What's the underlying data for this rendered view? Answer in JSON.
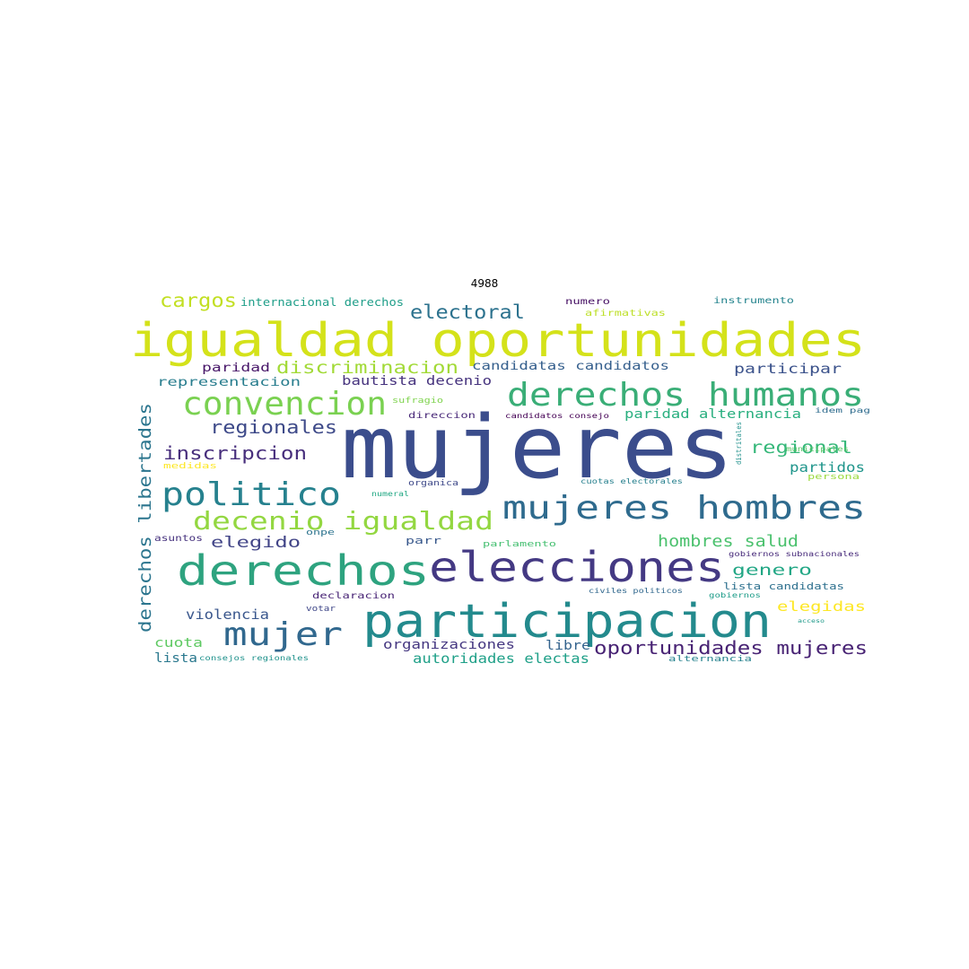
{
  "title": "4988",
  "words": [
    {
      "text": "mujeres",
      "color": "#3b4d8c"
    },
    {
      "text": "igualdad oportunidades",
      "color": "#d4e21a"
    },
    {
      "text": "participacion",
      "color": "#238a8d"
    },
    {
      "text": "elecciones",
      "color": "#443983"
    },
    {
      "text": "derechos",
      "color": "#2ea37f"
    },
    {
      "text": "mujeres hombres",
      "color": "#2f6b8e"
    },
    {
      "text": "derechos humanos",
      "color": "#3aae77"
    },
    {
      "text": "convencion",
      "color": "#7ad151"
    },
    {
      "text": "politico",
      "color": "#26818e"
    },
    {
      "text": "mujer",
      "color": "#31688e"
    },
    {
      "text": "decenio igualdad",
      "color": "#93d741"
    },
    {
      "text": "derechos libertades",
      "color": "#2b758e"
    },
    {
      "text": "oportunidades mujeres",
      "color": "#482374"
    },
    {
      "text": "electoral",
      "color": "#2c728e"
    },
    {
      "text": "inscripcion",
      "color": "#472e7c"
    },
    {
      "text": "regionales",
      "color": "#3e4a89"
    },
    {
      "text": "cargos",
      "color": "#c2df23"
    },
    {
      "text": "discriminacion",
      "color": "#a2da37"
    },
    {
      "text": "hombres salud",
      "color": "#4ac16d"
    },
    {
      "text": "regional",
      "color": "#35b779"
    },
    {
      "text": "elegido",
      "color": "#414487"
    },
    {
      "text": "genero",
      "color": "#22a785"
    },
    {
      "text": "partidos",
      "color": "#1f958b"
    },
    {
      "text": "participar",
      "color": "#3b528b"
    },
    {
      "text": "elegidas",
      "color": "#fde725"
    },
    {
      "text": "violencia",
      "color": "#39568c"
    },
    {
      "text": "autoridades electas",
      "color": "#1fa088"
    },
    {
      "text": "organizaciones",
      "color": "#453781"
    },
    {
      "text": "paridad alternancia",
      "color": "#29af7f"
    },
    {
      "text": "candidatas candidatos",
      "color": "#355f8d"
    },
    {
      "text": "bautista decenio",
      "color": "#46337e"
    },
    {
      "text": "representacion",
      "color": "#287d8e"
    },
    {
      "text": "paridad",
      "color": "#481769"
    },
    {
      "text": "internacional derechos",
      "color": "#1f9e89"
    },
    {
      "text": "instrumento",
      "color": "#25848e"
    },
    {
      "text": "numero",
      "color": "#471164"
    },
    {
      "text": "afirmativas",
      "color": "#bddf26"
    },
    {
      "text": "sufragio",
      "color": "#7fd34e"
    },
    {
      "text": "direccion",
      "color": "#482878"
    },
    {
      "text": "candidatos consejo",
      "color": "#440154"
    },
    {
      "text": "libre",
      "color": "#33638d"
    },
    {
      "text": "cuota",
      "color": "#5ec962"
    },
    {
      "text": "lista",
      "color": "#2a788e"
    },
    {
      "text": "consejos regionales",
      "color": "#20928c"
    },
    {
      "text": "alternancia",
      "color": "#26828e"
    },
    {
      "text": "lista candidatas",
      "color": "#2d708e"
    },
    {
      "text": "parlamento",
      "color": "#44bf70"
    },
    {
      "text": "gobiernos subnacionales",
      "color": "#472a7a"
    },
    {
      "text": "civiles politicos",
      "color": "#31688e"
    },
    {
      "text": "gobiernos",
      "color": "#1e9c89"
    },
    {
      "text": "declaracion",
      "color": "#482475"
    },
    {
      "text": "votar",
      "color": "#3f4788"
    },
    {
      "text": "asuntos",
      "color": "#46327e"
    },
    {
      "text": "onpe",
      "color": "#2c738e"
    },
    {
      "text": "parr",
      "color": "#38588c"
    },
    {
      "text": "organica",
      "color": "#3e4989"
    },
    {
      "text": "numeral",
      "color": "#22a884"
    },
    {
      "text": "cuotas electorales",
      "color": "#27808e"
    },
    {
      "text": "persona",
      "color": "#9bd93c"
    },
    {
      "text": "medidas",
      "color": "#fde725"
    },
    {
      "text": "municipales",
      "color": "#58c765"
    },
    {
      "text": "idem pag",
      "color": "#2f6c8e"
    },
    {
      "text": "distritales",
      "color": "#21918c"
    },
    {
      "text": "acceso",
      "color": "#1f9a8a"
    }
  ]
}
